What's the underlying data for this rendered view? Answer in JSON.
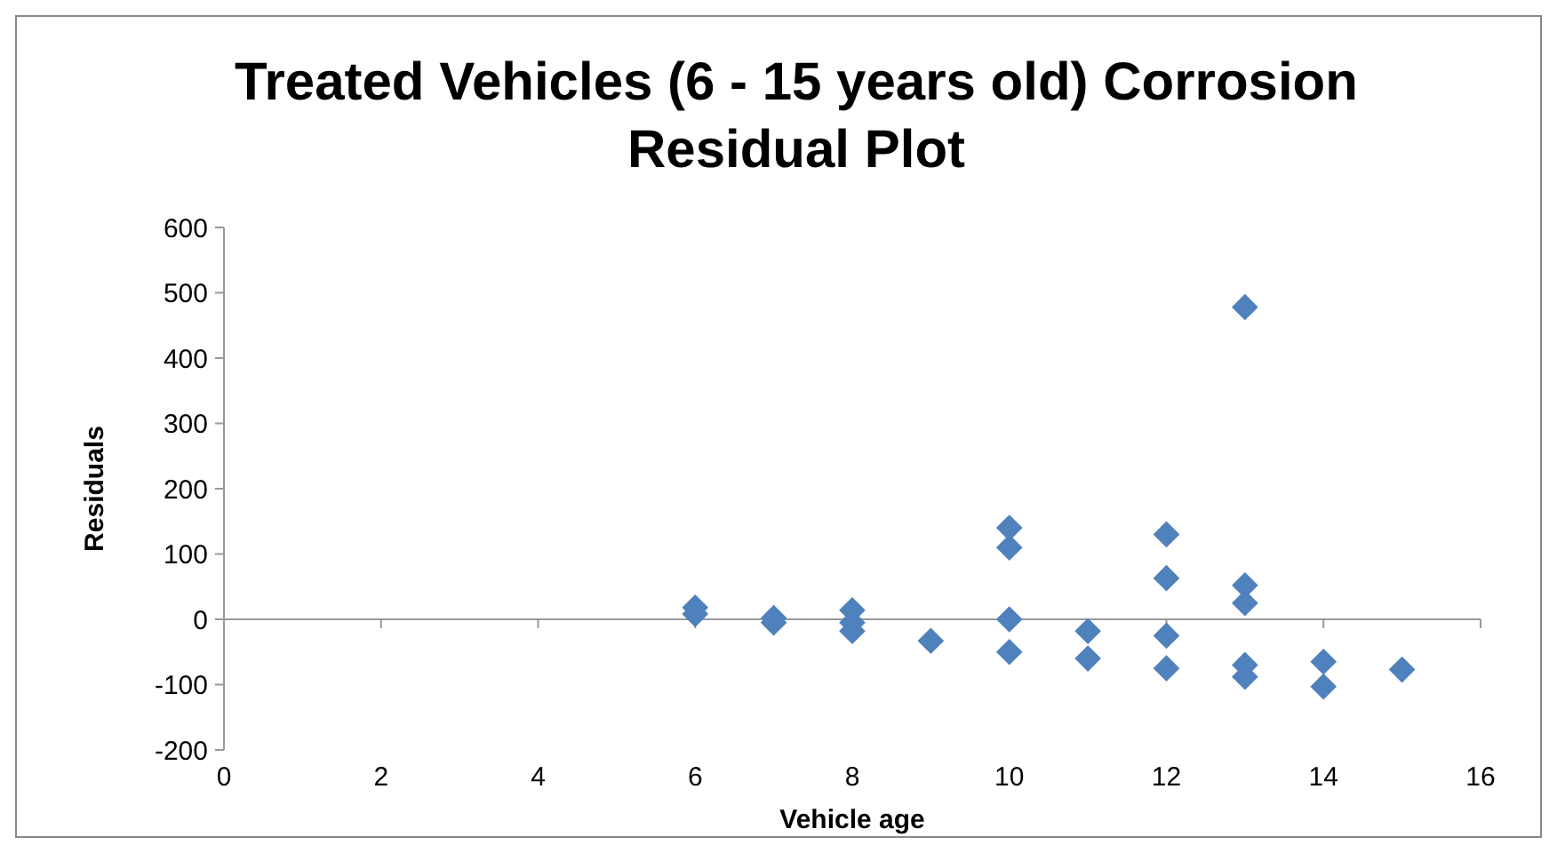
{
  "chart_data": {
    "type": "scatter",
    "title": "Treated Vehicles (6 - 15 years old) Corrosion Residual Plot",
    "xlabel": "Vehicle age",
    "ylabel": "Residuals",
    "marker": "diamond",
    "xlim": [
      0,
      16
    ],
    "xticks": [
      0,
      2,
      4,
      6,
      8,
      10,
      12,
      14,
      16
    ],
    "ylim": [
      -200,
      600
    ],
    "yticks": [
      -200,
      -100,
      0,
      100,
      200,
      300,
      400,
      500,
      600
    ],
    "series": [
      {
        "color": "#4f81bd",
        "x": [
          6,
          6,
          7,
          7,
          8,
          8,
          8,
          9,
          10,
          10,
          10,
          10,
          11,
          11,
          12,
          12,
          12,
          12,
          13,
          13,
          13,
          13,
          13,
          14,
          14,
          15
        ],
        "values": [
          18,
          8,
          2,
          -5,
          14,
          -5,
          -18,
          -33,
          140,
          110,
          0,
          -50,
          -18,
          -60,
          130,
          63,
          -25,
          -75,
          478,
          52,
          25,
          -70,
          -88,
          -65,
          -103,
          -77
        ]
      }
    ]
  }
}
